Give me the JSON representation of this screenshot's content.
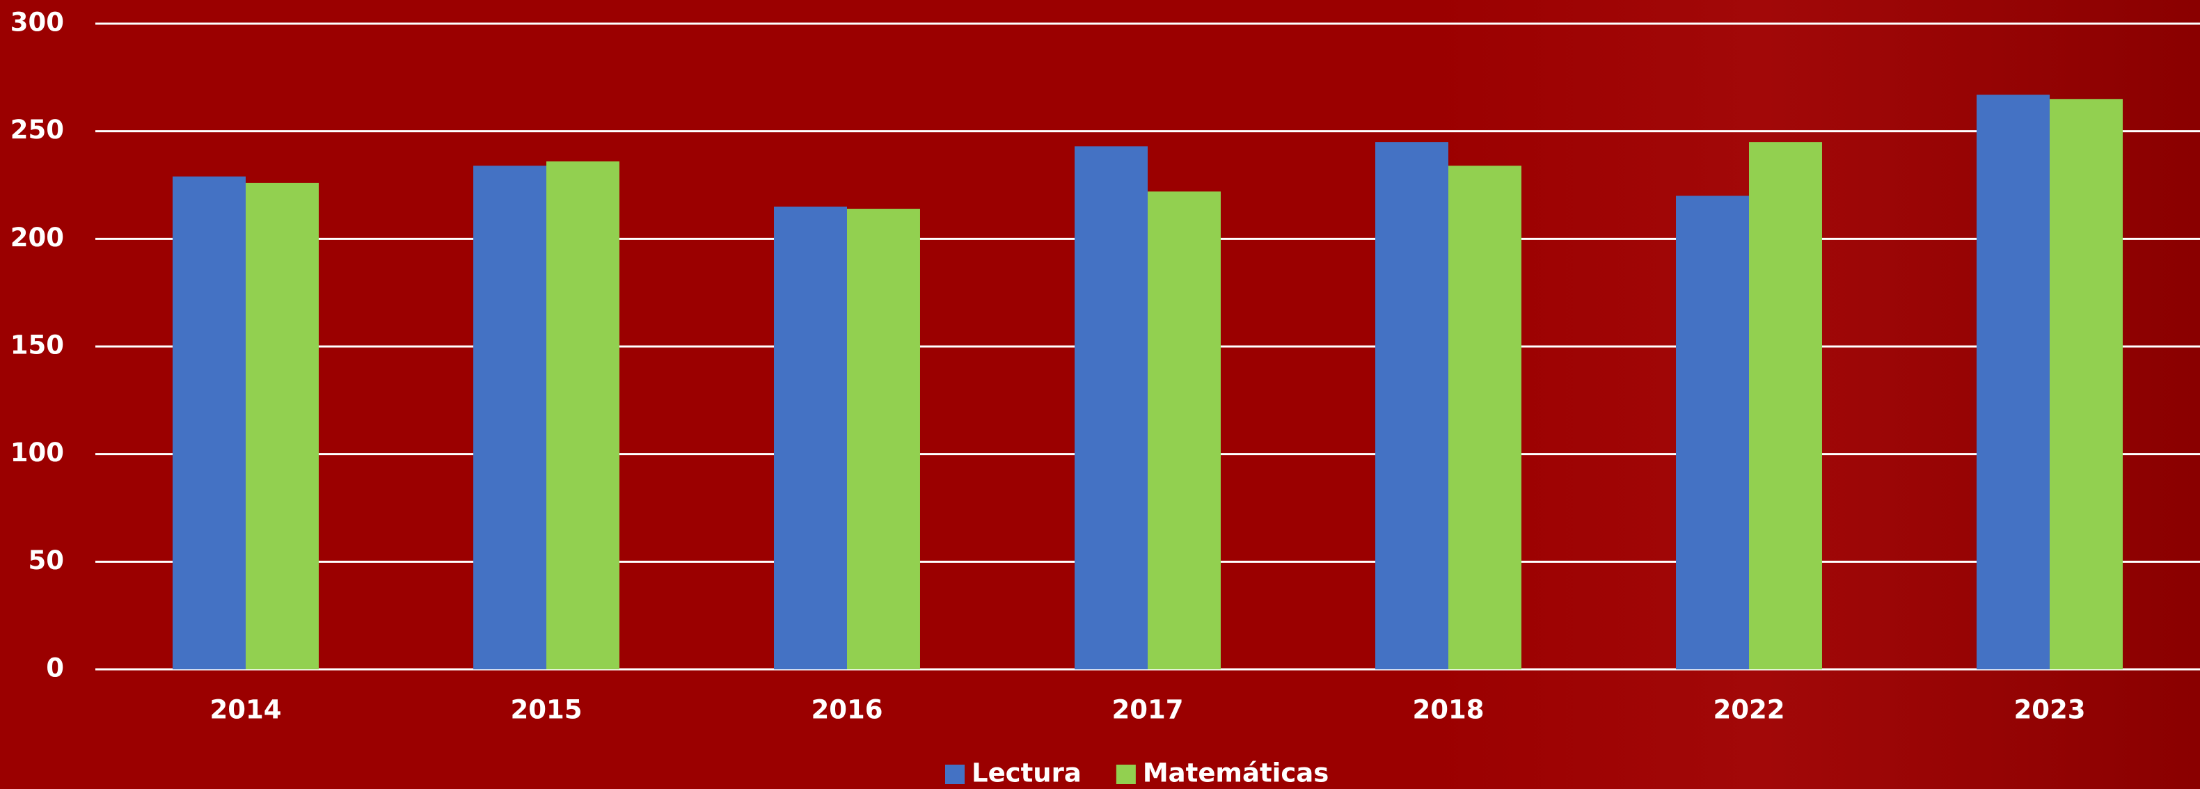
{
  "chart_data": {
    "type": "bar",
    "categories": [
      "2014",
      "2015",
      "2016",
      "2017",
      "2018",
      "2022",
      "2023"
    ],
    "series": [
      {
        "name": "Lectura",
        "color": "#4472c4",
        "values": [
          229,
          234,
          215,
          243,
          245,
          220,
          267
        ]
      },
      {
        "name": "Matemáticas",
        "color": "#92d050",
        "values": [
          226,
          236,
          214,
          222,
          234,
          245,
          265
        ]
      }
    ],
    "ylim": [
      0,
      300
    ],
    "yticks": [
      0,
      50,
      100,
      150,
      200,
      250,
      300
    ],
    "grid": true,
    "legend": "bottom"
  }
}
